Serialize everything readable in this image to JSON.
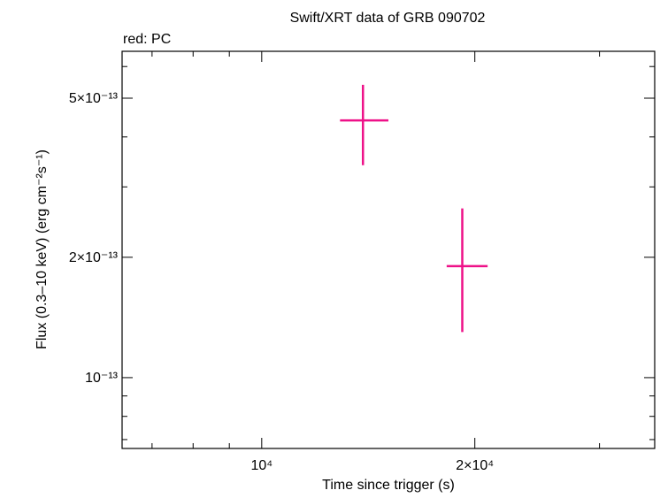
{
  "chart_data": {
    "type": "errorbar",
    "title": "Swift/XRT data of GRB 090702",
    "subtitle": "red: PC",
    "x_label": "Time since trigger (s)",
    "y_label": "Flux (0.3–10 keV) (erg cm⁻²s⁻¹)",
    "xscale": "log",
    "yscale": "log",
    "xlim": [
      6350,
      35900
    ],
    "ylim": [
      6.65e-14,
      6.55e-13
    ],
    "xticks": [
      {
        "value": 10000,
        "label": "10⁴"
      },
      {
        "value": 20000,
        "label": "2×10⁴"
      }
    ],
    "yticks": [
      {
        "value": 1e-13,
        "label": "10⁻¹³"
      },
      {
        "value": 2e-13,
        "label": "2×10⁻¹³"
      },
      {
        "value": 5e-13,
        "label": "5×10⁻¹³"
      }
    ],
    "xminorticks": [
      7000,
      8000,
      9000,
      30000
    ],
    "yminorticks": [
      7e-14,
      8e-14,
      9e-14,
      3e-13,
      4e-13,
      6e-13
    ],
    "series": [
      {
        "name": "PC",
        "color": "#ee1188",
        "x": [
          13900,
          19200
        ],
        "xerr": [
          [
            1000,
            1200
          ],
          [
            950,
            1650
          ]
        ],
        "values": [
          4.4e-13,
          1.9e-13
        ],
        "yerr": [
          [
            1e-13,
            1e-13
          ],
          [
            6e-14,
            7.5e-14
          ]
        ]
      }
    ]
  }
}
